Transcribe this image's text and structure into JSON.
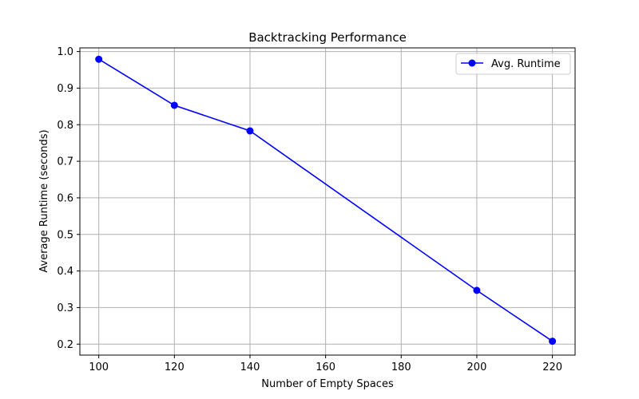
{
  "chart_data": {
    "type": "line",
    "title": "Backtracking Performance",
    "xlabel": "Number of Empty Spaces",
    "ylabel": "Average Runtime (seconds)",
    "x": [
      100,
      120,
      140,
      200,
      220
    ],
    "series": [
      {
        "name": "Avg. Runtime",
        "values": [
          0.979,
          0.853,
          0.783,
          0.347,
          0.208
        ],
        "color": "#0000ff",
        "marker": "circle"
      }
    ],
    "xlim": [
      95,
      226
    ],
    "ylim": [
      0.17,
      1.01
    ],
    "xticks": [
      100,
      120,
      140,
      160,
      180,
      200,
      220
    ],
    "yticks": [
      0.2,
      0.3,
      0.4,
      0.5,
      0.6,
      0.7,
      0.8,
      0.9,
      1.0
    ],
    "ytick_labels": [
      "0.2",
      "0.3",
      "0.4",
      "0.5",
      "0.6",
      "0.7",
      "0.8",
      "0.9",
      "1.0"
    ],
    "grid": true,
    "legend_position": "top-right"
  }
}
